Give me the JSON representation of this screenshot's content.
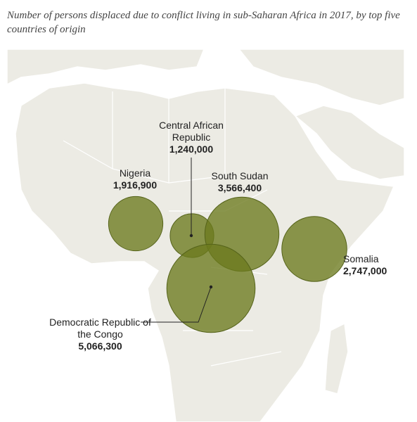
{
  "subtitle": "Number of persons displaced due to conflict living in sub-Saharan Africa in 2017, by top five countries of origin",
  "chart_data": {
    "type": "bubble",
    "color": "#6b7a1e",
    "categories": [
      "Nigeria",
      "Central African Republic",
      "South Sudan",
      "Somalia",
      "Democratic Republic of the Congo"
    ],
    "values": [
      1916900,
      1240000,
      3566400,
      2747000,
      5066300
    ],
    "value_labels": [
      "1,916,900",
      "1,240,000",
      "3,566,400",
      "2,747,000",
      "5,066,300"
    ]
  }
}
